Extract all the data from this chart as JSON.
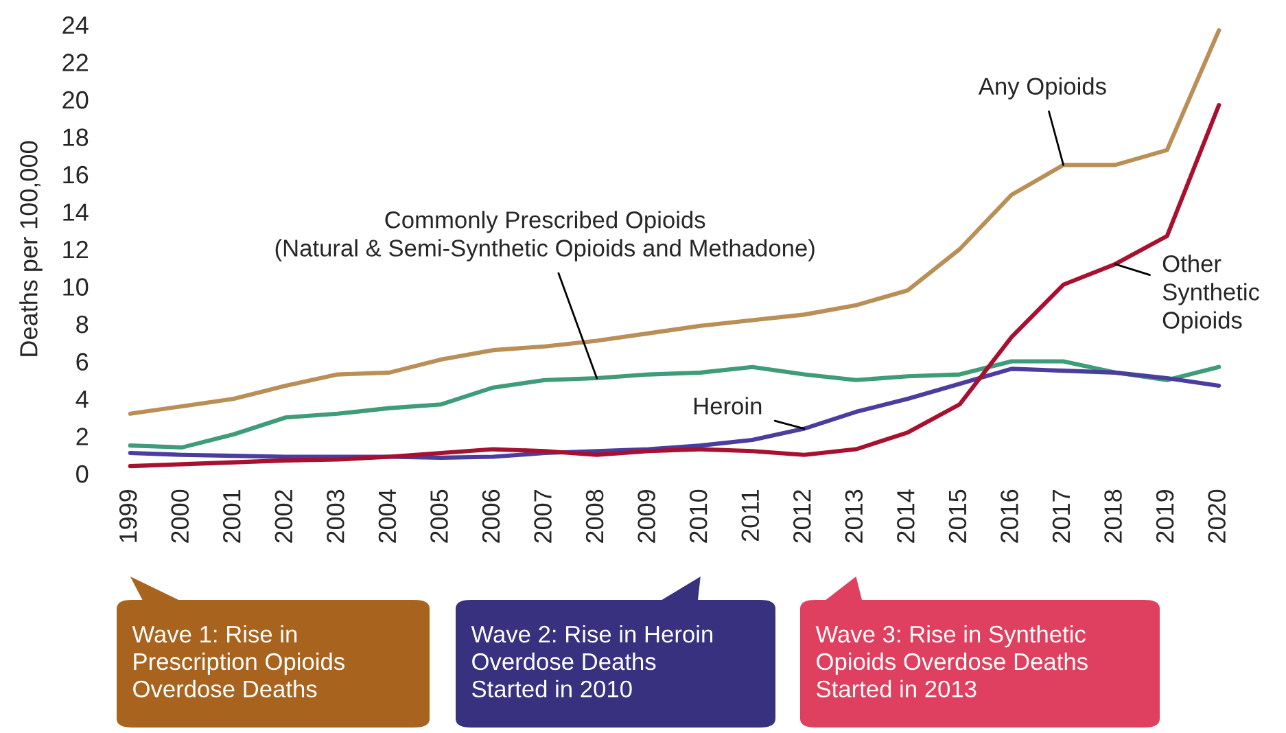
{
  "chart_data": {
    "type": "line",
    "ylabel": "Deaths per 100,000",
    "categories": [
      "1999",
      "2000",
      "2001",
      "2002",
      "2003",
      "2004",
      "2005",
      "2006",
      "2007",
      "2008",
      "2009",
      "2010",
      "2011",
      "2012",
      "2013",
      "2014",
      "2015",
      "2016",
      "2017",
      "2018",
      "2019",
      "2020"
    ],
    "ylim": [
      0,
      24
    ],
    "yticks": [
      0,
      2,
      4,
      6,
      8,
      10,
      12,
      14,
      16,
      18,
      20,
      22,
      24
    ],
    "series": [
      {
        "name": "Any Opioids",
        "color": "#b98f57",
        "values": [
          3.2,
          3.6,
          4.0,
          4.7,
          5.3,
          5.4,
          6.1,
          6.6,
          6.8,
          7.1,
          7.5,
          7.9,
          8.2,
          8.5,
          9.0,
          9.8,
          12.0,
          14.9,
          16.5,
          16.5,
          17.3,
          23.7
        ]
      },
      {
        "name": "Commonly Prescribed Opioids\n(Natural & Semi-Synthetic Opioids and Methadone)",
        "color": "#3f9c78",
        "values": [
          1.5,
          1.4,
          2.1,
          3.0,
          3.2,
          3.5,
          3.7,
          4.6,
          5.0,
          5.1,
          5.3,
          5.4,
          5.7,
          5.3,
          5.0,
          5.2,
          5.3,
          6.0,
          6.0,
          5.4,
          5.0,
          5.7
        ]
      },
      {
        "name": "Heroin",
        "color": "#4b3d9e",
        "values": [
          1.1,
          1.0,
          0.95,
          0.9,
          0.9,
          0.9,
          0.85,
          0.9,
          1.1,
          1.2,
          1.3,
          1.5,
          1.8,
          2.4,
          3.3,
          4.0,
          4.8,
          5.6,
          5.5,
          5.4,
          5.1,
          4.7
        ]
      },
      {
        "name": "Other\nSynthetic\nOpioids",
        "color": "#a8102f",
        "values": [
          0.4,
          0.5,
          0.6,
          0.7,
          0.75,
          0.9,
          1.1,
          1.3,
          1.2,
          1.0,
          1.2,
          1.3,
          1.2,
          1.0,
          1.3,
          2.2,
          3.7,
          7.3,
          10.1,
          11.2,
          12.7,
          19.7
        ]
      }
    ],
    "annotations": [
      "Wave 1: Rise in\nPrescription Opioids\nOverdose Deaths",
      "Wave 2: Rise in Heroin\nOverdose Deaths\nStarted in 2010",
      "Wave 3: Rise in Synthetic\nOpioids Overdose Deaths\nStarted in 2013"
    ]
  }
}
